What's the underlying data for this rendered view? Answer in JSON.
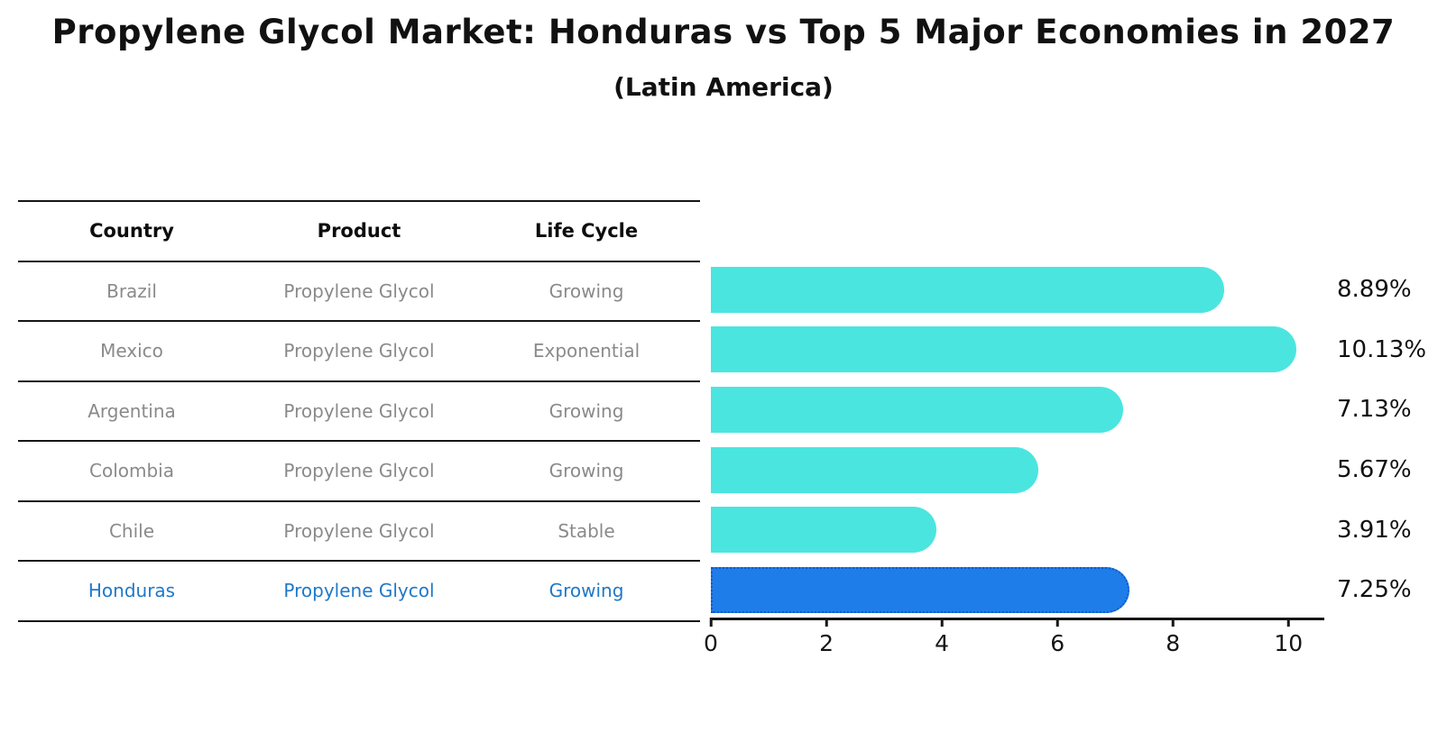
{
  "title": "Propylene Glycol Market: Honduras vs Top 5 Major Economies in 2027",
  "subtitle": "(Latin America)",
  "table": {
    "headers": [
      "Country",
      "Product",
      "Life Cycle"
    ],
    "rows": [
      {
        "country": "Brazil",
        "product": "Propylene Glycol",
        "life_cycle": "Growing",
        "highlight": false
      },
      {
        "country": "Mexico",
        "product": "Propylene Glycol",
        "life_cycle": "Exponential",
        "highlight": false
      },
      {
        "country": "Argentina",
        "product": "Propylene Glycol",
        "life_cycle": "Growing",
        "highlight": false
      },
      {
        "country": "Colombia",
        "product": "Propylene Glycol",
        "life_cycle": "Growing",
        "highlight": false
      },
      {
        "country": "Chile",
        "product": "Propylene Glycol",
        "life_cycle": "Stable",
        "highlight": false
      },
      {
        "country": "Honduras",
        "product": "Propylene Glycol",
        "life_cycle": "Growing",
        "highlight": true
      }
    ]
  },
  "chart_data": {
    "type": "bar",
    "orientation": "horizontal",
    "title": "Propylene Glycol Market: Honduras vs Top 5 Major Economies in 2027",
    "subtitle": "(Latin America)",
    "categories": [
      "Brazil",
      "Mexico",
      "Argentina",
      "Colombia",
      "Chile",
      "Honduras"
    ],
    "values": [
      8.89,
      10.13,
      7.13,
      5.67,
      3.91,
      7.25
    ],
    "value_labels": [
      "8.89%",
      "10.13%",
      "7.13%",
      "5.67%",
      "3.91%",
      "7.25%"
    ],
    "highlight_index": 5,
    "x_tick_labels": [
      "0",
      "2",
      "4",
      "6",
      "8",
      "10"
    ],
    "x_tick_values": [
      0,
      2,
      4,
      6,
      8,
      10
    ],
    "xlim": [
      0,
      10.62
    ],
    "grid": false,
    "legend": false,
    "colors": {
      "bar": "#4BE5E0",
      "highlight_bar": "#1E7DE8",
      "highlight_border": "#1259C9",
      "row_text": "#8A8A8A",
      "highlight_text": "#1F78C8",
      "axis": "#161616"
    }
  }
}
